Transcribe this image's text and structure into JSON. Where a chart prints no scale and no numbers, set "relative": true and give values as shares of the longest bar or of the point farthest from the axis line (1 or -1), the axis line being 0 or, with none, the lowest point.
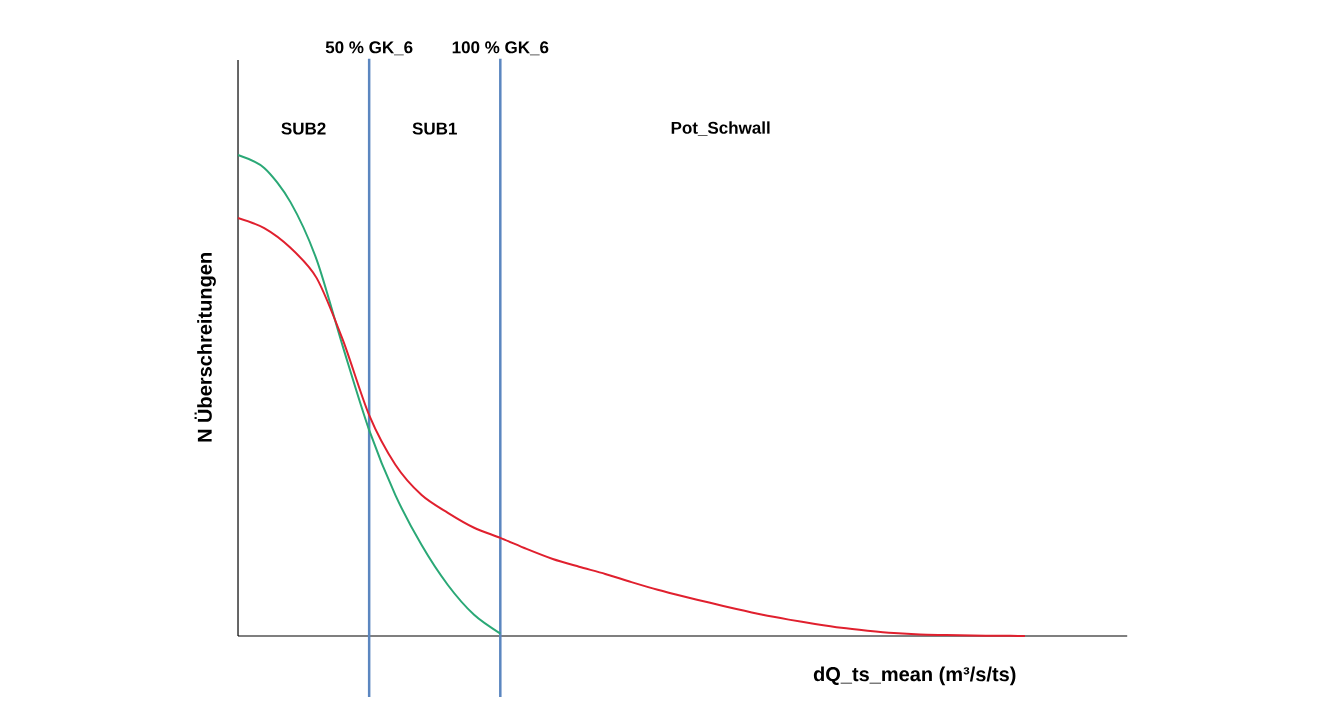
{
  "chart_data": {
    "type": "line",
    "relative": true,
    "xlabel": "dQ_ts_mean (m³/s/ts)",
    "ylabel": "N Überschreitungen",
    "categories": [
      null,
      null,
      null,
      null,
      null,
      null,
      null,
      null,
      null,
      null,
      null,
      null,
      null,
      null,
      null,
      null,
      null,
      null,
      null,
      null,
      null,
      null,
      null,
      null,
      null,
      null,
      null,
      null,
      null,
      null,
      null
    ],
    "series": [
      {
        "color": "#2aa876",
        "values": [
          1.0,
          0.973,
          0.902,
          0.782,
          0.601,
          0.428,
          0.293,
          0.189,
          0.106,
          0.044,
          0.005,
          null,
          null,
          null,
          null,
          null,
          null,
          null,
          null,
          null,
          null,
          null,
          null,
          null,
          null,
          null,
          null,
          null,
          null,
          null,
          null
        ]
      },
      {
        "color": "#e0202e",
        "values": [
          0.869,
          0.848,
          0.807,
          0.744,
          0.615,
          0.459,
          0.356,
          0.293,
          0.256,
          0.225,
          0.204,
          0.181,
          0.16,
          0.144,
          0.129,
          0.112,
          0.096,
          0.082,
          0.069,
          0.056,
          0.044,
          0.034,
          0.025,
          0.017,
          0.011,
          0.006,
          0.003,
          0.002,
          0.001,
          0.0005,
          0
        ]
      }
    ],
    "annotations": [
      "50 % GK_6",
      "100 % GK_6",
      "SUB2",
      "SUB1",
      "Pot_Schwall"
    ],
    "marker": "none",
    "line_style": "solid"
  }
}
